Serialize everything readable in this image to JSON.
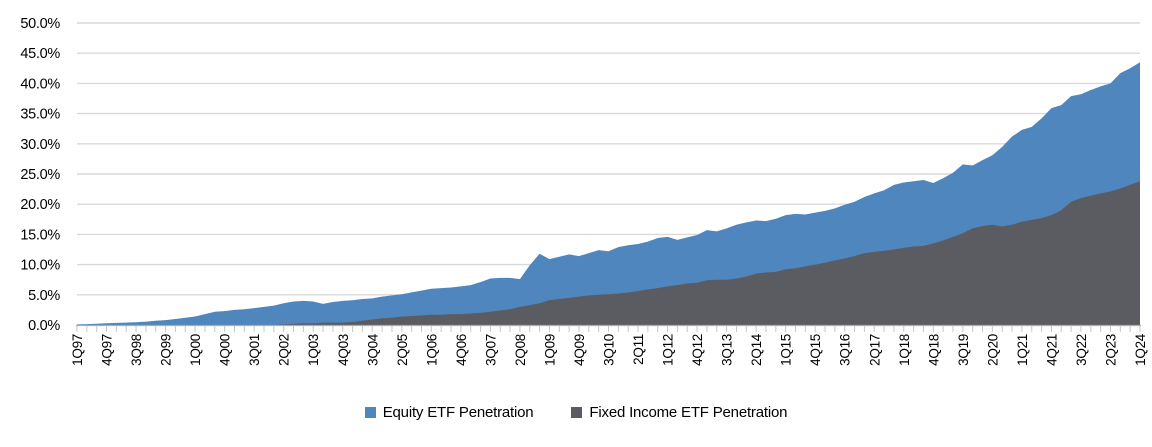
{
  "chart_data": {
    "type": "area",
    "mode": "overlapping",
    "title": "",
    "xlabel": "",
    "ylabel": "",
    "ylim": [
      0,
      50
    ],
    "y_tick_step": 5,
    "grid": true,
    "legend_position": "bottom",
    "y_tick_labels": [
      "0.0%",
      "5.0%",
      "10.0%",
      "15.0%",
      "20.0%",
      "25.0%",
      "30.0%",
      "35.0%",
      "40.0%",
      "45.0%",
      "50.0%"
    ],
    "x_label_every": 3,
    "x_start": "1Q97",
    "x_end": "1Q24",
    "n_points": 109,
    "x_tick_labels": [
      "1Q97",
      "4Q97",
      "3Q98",
      "2Q99",
      "1Q00",
      "4Q00",
      "3Q01",
      "2Q02",
      "1Q03",
      "4Q03",
      "3Q04",
      "2Q05",
      "1Q06",
      "4Q06",
      "3Q07",
      "2Q08",
      "1Q09",
      "4Q09",
      "3Q10",
      "2Q11",
      "1Q12",
      "4Q12",
      "3Q13",
      "2Q14",
      "1Q15",
      "4Q15",
      "3Q16",
      "2Q17",
      "1Q18",
      "4Q18",
      "3Q19",
      "2Q20",
      "1Q21",
      "4Q21",
      "3Q22",
      "2Q23",
      "1Q24"
    ],
    "series": [
      {
        "name": "Equity ETF Penetration",
        "color": "#4E86BD",
        "values": [
          0.1,
          0.15,
          0.2,
          0.3,
          0.35,
          0.4,
          0.45,
          0.55,
          0.7,
          0.8,
          1.0,
          1.2,
          1.4,
          1.8,
          2.2,
          2.3,
          2.5,
          2.6,
          2.8,
          3.0,
          3.2,
          3.6,
          3.9,
          4.0,
          3.9,
          3.5,
          3.8,
          4.0,
          4.1,
          4.3,
          4.4,
          4.7,
          4.9,
          5.1,
          5.4,
          5.7,
          6.0,
          6.1,
          6.2,
          6.4,
          6.6,
          7.1,
          7.7,
          7.8,
          7.8,
          7.6,
          9.9,
          11.8,
          10.9,
          11.3,
          11.7,
          11.4,
          11.9,
          12.4,
          12.2,
          12.9,
          13.2,
          13.4,
          13.8,
          14.4,
          14.6,
          14.1,
          14.5,
          14.9,
          15.7,
          15.5,
          16.0,
          16.6,
          17.0,
          17.3,
          17.2,
          17.6,
          18.2,
          18.4,
          18.3,
          18.6,
          18.9,
          19.3,
          19.9,
          20.4,
          21.2,
          21.8,
          22.3,
          23.2,
          23.6,
          23.8,
          24.0,
          23.5,
          24.3,
          25.2,
          26.6,
          26.4,
          27.3,
          28.1,
          29.5,
          31.2,
          32.3,
          32.8,
          34.2,
          35.9,
          36.4,
          37.9,
          38.2,
          38.9,
          39.5,
          40.0,
          41.7,
          42.5,
          43.5
        ]
      },
      {
        "name": "Fixed Income ETF Penetration",
        "color": "#5A5C62",
        "values": [
          0,
          0,
          0,
          0,
          0,
          0,
          0,
          0,
          0,
          0,
          0,
          0,
          0,
          0,
          0,
          0,
          0,
          0,
          0,
          0,
          0,
          0.1,
          0.2,
          0.3,
          0.3,
          0.4,
          0.4,
          0.4,
          0.5,
          0.7,
          0.9,
          1.1,
          1.2,
          1.4,
          1.5,
          1.6,
          1.7,
          1.7,
          1.8,
          1.8,
          1.9,
          2.0,
          2.2,
          2.4,
          2.6,
          3.0,
          3.3,
          3.6,
          4.1,
          4.3,
          4.5,
          4.7,
          4.9,
          5.0,
          5.1,
          5.2,
          5.4,
          5.6,
          5.9,
          6.1,
          6.4,
          6.6,
          6.9,
          7.0,
          7.4,
          7.5,
          7.5,
          7.7,
          8.0,
          8.5,
          8.7,
          8.8,
          9.2,
          9.4,
          9.7,
          10.0,
          10.3,
          10.7,
          11.0,
          11.4,
          11.9,
          12.1,
          12.3,
          12.5,
          12.8,
          13.0,
          13.1,
          13.5,
          14.0,
          14.6,
          15.2,
          16.0,
          16.4,
          16.6,
          16.3,
          16.6,
          17.1,
          17.4,
          17.7,
          18.2,
          19.0,
          20.4,
          21.0,
          21.4,
          21.8,
          22.1,
          22.6,
          23.2,
          23.8
        ]
      }
    ],
    "colors": {
      "gridline": "#D9D9D9",
      "axis_line": "#ACACAC",
      "tick": "#C6C6C6",
      "label_text": "#000000"
    }
  }
}
